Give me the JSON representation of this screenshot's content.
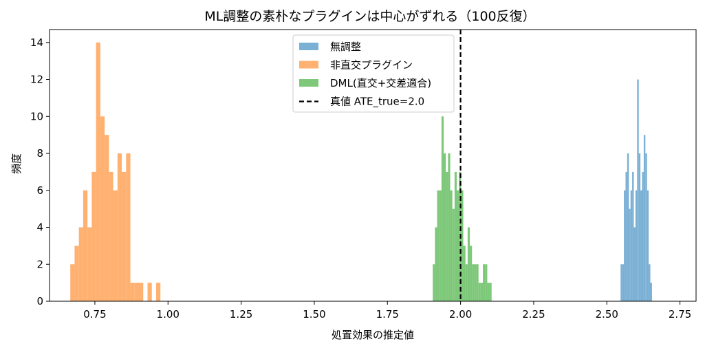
{
  "chart_data": {
    "type": "bar",
    "title": "ML調整の素朴なプラグインは中心がずれる（100反復）",
    "xlabel": "処置効果の推定値",
    "ylabel": "頻度",
    "xlim": [
      0.595,
      2.805
    ],
    "ylim": [
      0,
      14.7
    ],
    "xticks": [
      0.75,
      1.0,
      1.25,
      1.5,
      1.75,
      2.0,
      2.25,
      2.5,
      2.75
    ],
    "xtick_labels": [
      "0.75",
      "1.00",
      "1.25",
      "1.50",
      "1.75",
      "2.00",
      "2.25",
      "2.50",
      "2.75"
    ],
    "yticks": [
      0,
      2,
      4,
      6,
      8,
      10,
      12,
      14
    ],
    "ytick_labels": [
      "0",
      "2",
      "4",
      "6",
      "8",
      "10",
      "12",
      "14"
    ],
    "grid": false,
    "legend_position": "top-center",
    "series": [
      {
        "name": "非直交プラグイン",
        "color": "#ffb171",
        "bin_start": 0.666,
        "bin_width": 0.01467,
        "counts": [
          2,
          3,
          4,
          6,
          4,
          7,
          14,
          10,
          9,
          7,
          6,
          8,
          7,
          8,
          1,
          1,
          1,
          0,
          1,
          0,
          1
        ]
      },
      {
        "name": "DML(直交+交差適合)",
        "color": "#7ec87a",
        "bin_start": 1.905,
        "bin_width": 0.00745,
        "counts": [
          2,
          4,
          6,
          6,
          10,
          8,
          7,
          8,
          6,
          5,
          7,
          6,
          7,
          6,
          3,
          2,
          4,
          3,
          2,
          2,
          2,
          1,
          1,
          2,
          2,
          1,
          1
        ]
      },
      {
        "name": "無調整",
        "color": "#7bb0d5",
        "bin_start": 2.547,
        "bin_width": 0.00565,
        "counts": [
          2,
          2,
          6,
          7,
          8,
          5,
          6,
          7,
          4,
          6,
          12,
          8,
          6,
          7,
          9,
          8,
          6,
          2,
          1
        ]
      }
    ],
    "vlines": [
      {
        "name": "真値 ATE_true=2.0",
        "x": 2.0,
        "color": "#000000",
        "style": "dashed"
      }
    ],
    "legend_order": [
      "無調整",
      "非直交プラグイン",
      "DML(直交+交差適合)",
      "真値 ATE_true=2.0"
    ]
  }
}
